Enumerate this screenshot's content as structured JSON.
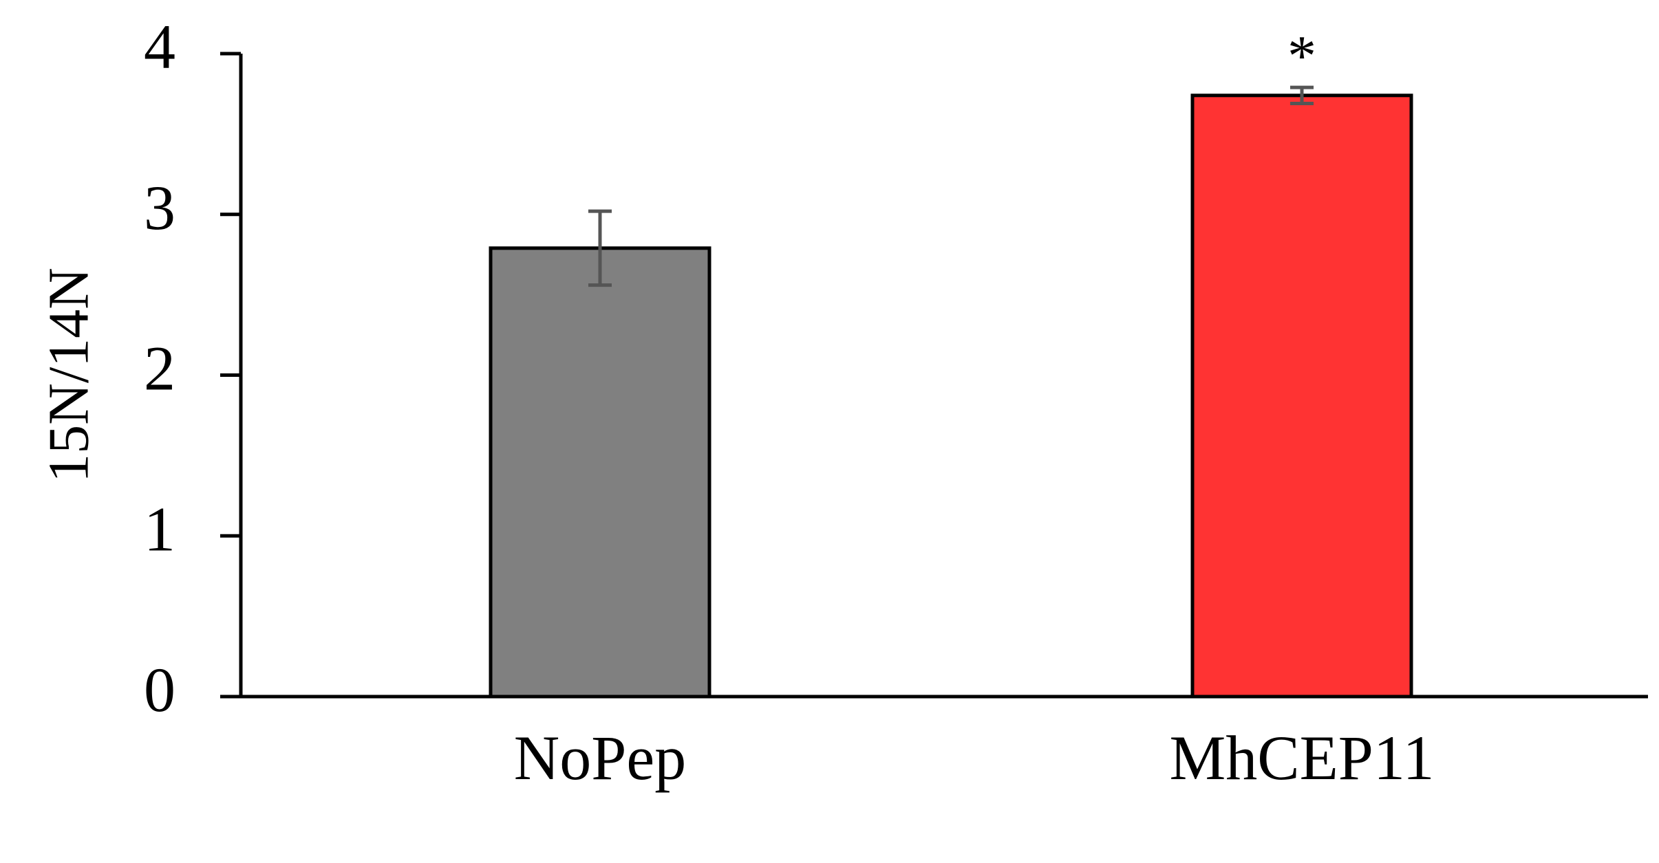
{
  "chart_data": {
    "type": "bar",
    "title": "",
    "xlabel": "",
    "ylabel": "15N/14N",
    "ylim": [
      0,
      4
    ],
    "yticks": [
      "0",
      "1",
      "2",
      "3",
      "4"
    ],
    "grid": false,
    "categories": [
      "NoPep",
      "MhCEP11"
    ],
    "values": [
      2.79,
      3.74
    ],
    "error": [
      0.23,
      0.05
    ],
    "significance": [
      "",
      "*"
    ],
    "colors": [
      "#808080",
      "#ff3333"
    ]
  }
}
